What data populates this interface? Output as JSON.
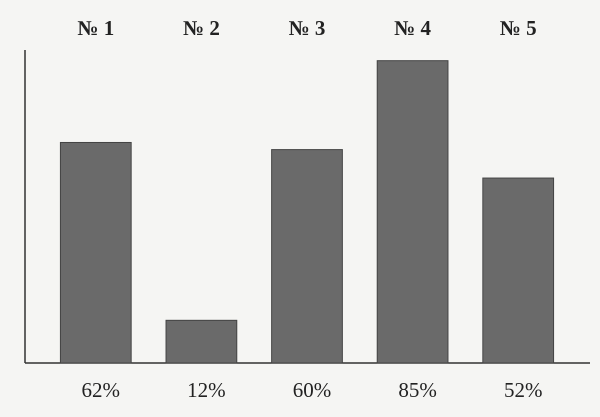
{
  "chart_data": {
    "type": "bar",
    "categories": [
      "№ 1",
      "№ 2",
      "№ 3",
      "№ 4",
      "№ 5"
    ],
    "values": [
      62,
      12,
      60,
      85,
      52
    ],
    "value_labels": [
      "62%",
      "12%",
      "60%",
      "85%",
      "52%"
    ],
    "color": "#6a6a6a",
    "ylim": [
      0,
      88
    ]
  }
}
